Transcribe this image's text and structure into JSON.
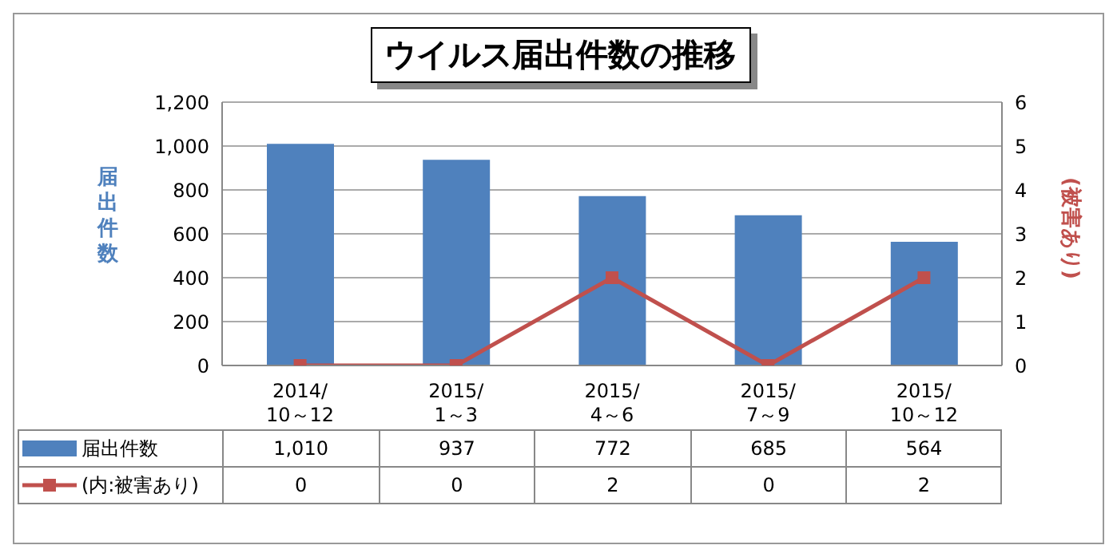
{
  "chart_data": {
    "type": "bar",
    "title": "ウイルス届出件数の推移",
    "ylabel": "届出件数",
    "y2label": "(被害あり)",
    "categories": [
      "2014/10～12",
      "2015/1～3",
      "2015/4～6",
      "2015/7～9",
      "2015/10～12"
    ],
    "series": [
      {
        "name": "届出件数",
        "color": "#4f81bd",
        "values": [
          1010,
          937,
          772,
          685,
          564
        ],
        "value_labels": [
          "1,010",
          "937",
          "772",
          "685",
          "564"
        ]
      },
      {
        "name": "(内:被害あり)",
        "type": "line",
        "axis": "y2",
        "color": "#c0504d",
        "marker": "square",
        "values": [
          0,
          0,
          2,
          0,
          2
        ],
        "value_labels": [
          "0",
          "0",
          "2",
          "0",
          "2"
        ]
      }
    ],
    "ylim": [
      0,
      1200
    ],
    "yticks": [
      0,
      200,
      400,
      600,
      800,
      {
        "value": 1000,
        "label": "1,000"
      },
      {
        "value": 1200,
        "label": "1,200"
      }
    ],
    "y2lim": [
      0,
      6
    ],
    "y2ticks": [
      0,
      1,
      2,
      3,
      4,
      5,
      6
    ],
    "grid": "y",
    "legend": "bottom"
  }
}
